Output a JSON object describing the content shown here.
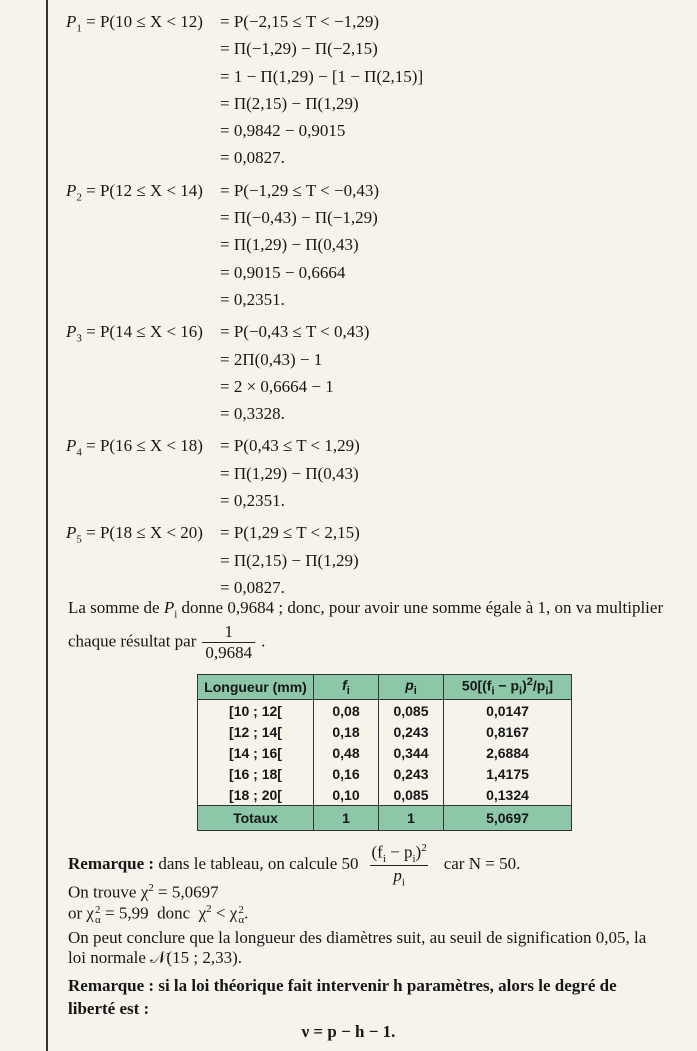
{
  "derivations": [
    {
      "label": [
        "P",
        "1",
        " = P(10 ≤ X < 12)"
      ],
      "steps": [
        "= P(−2,15 ≤ T < −1,29)",
        "= Π(−1,29) − Π(−2,15)",
        "= 1 − Π(1,29) − [1 − Π(2,15)]",
        "= Π(2,15) − Π(1,29)",
        "= 0,9842 − 0,9015",
        "= 0,0827."
      ]
    },
    {
      "label": [
        "P",
        "2",
        " = P(12 ≤ X < 14)"
      ],
      "steps": [
        "= P(−1,29 ≤ T < −0,43)",
        "= Π(−0,43) − Π(−1,29)",
        "= Π(1,29) − Π(0,43)",
        "= 0,9015 − 0,6664",
        "= 0,2351."
      ]
    },
    {
      "label": [
        "P",
        "3",
        " = P(14 ≤ X < 16)"
      ],
      "steps": [
        "= P(−0,43 ≤ T < 0,43)",
        "= 2Π(0,43) − 1",
        "= 2 × 0,6664 − 1",
        "= 0,3328."
      ]
    },
    {
      "label": [
        "P",
        "4",
        " = P(16 ≤ X < 18)"
      ],
      "steps": [
        "= P(0,43 ≤ T < 1,29)",
        "= Π(1,29) − Π(0,43)",
        "= 0,2351."
      ]
    },
    {
      "label": [
        "P",
        "5",
        " = P(18 ≤ X < 20)"
      ],
      "steps": [
        "= P(1,29 ≤ T < 2,15)",
        "= Π(2,15) − Π(1,29)",
        "= 0,0827."
      ]
    }
  ],
  "sum_text": {
    "line1": [
      "La somme de ",
      "P",
      "i",
      " donne 0,9684 ; donc, pour avoir une somme égale à 1, on va multiplier"
    ],
    "line2": "chaque résultat par",
    "fraction": [
      "1",
      "0,9684"
    ],
    "end": "."
  },
  "table": {
    "header": [
      [
        "Longueur (mm)"
      ],
      [
        "f",
        "i"
      ],
      [
        "p",
        "i"
      ],
      [
        "50[(f",
        "i",
        " − p",
        "i",
        ")",
        "2",
        "/p",
        "i",
        "]"
      ]
    ],
    "rows": [
      [
        "[10 ; 12[",
        "0,08",
        "0,085",
        "0,0147"
      ],
      [
        "[12 ; 14[",
        "0,18",
        "0,243",
        "0,8167"
      ],
      [
        "[14 ; 16[",
        "0,48",
        "0,344",
        "2,6884"
      ],
      [
        "[16 ; 18[",
        "0,16",
        "0,243",
        "1,4175"
      ],
      [
        "[18 ; 20[",
        "0,10",
        "0,085",
        "0,1324"
      ]
    ],
    "total": [
      "Totaux",
      "1",
      "1",
      "5,0697"
    ]
  },
  "remark1": {
    "label": "Remarque :",
    "text": "dans le tableau, on calcule 50",
    "numerator": [
      "(f",
      "i",
      " − p",
      "i",
      ")",
      "2"
    ],
    "denominator": [
      "p",
      "i"
    ],
    "end": "car N = 50."
  },
  "result": {
    "line1": [
      "On trouve ",
      "χ",
      "2",
      " = 5,0697"
    ],
    "line2": [
      "or ",
      "χ",
      "2",
      "α",
      " = 5,99  donc  ",
      "χ",
      "2",
      " < ",
      "χ",
      "2",
      "α",
      "."
    ],
    "conclusion": "On peut conclure que la longueur des diamètres suit, au seuil de signification 0,05, la loi normale 𝒩(15 ; 2,33)."
  },
  "remark2": {
    "label": "Remarque :",
    "text": "si la loi théorique fait intervenir h paramètres, alors le degré de liberté est :",
    "formula": "ν = p − h − 1."
  }
}
